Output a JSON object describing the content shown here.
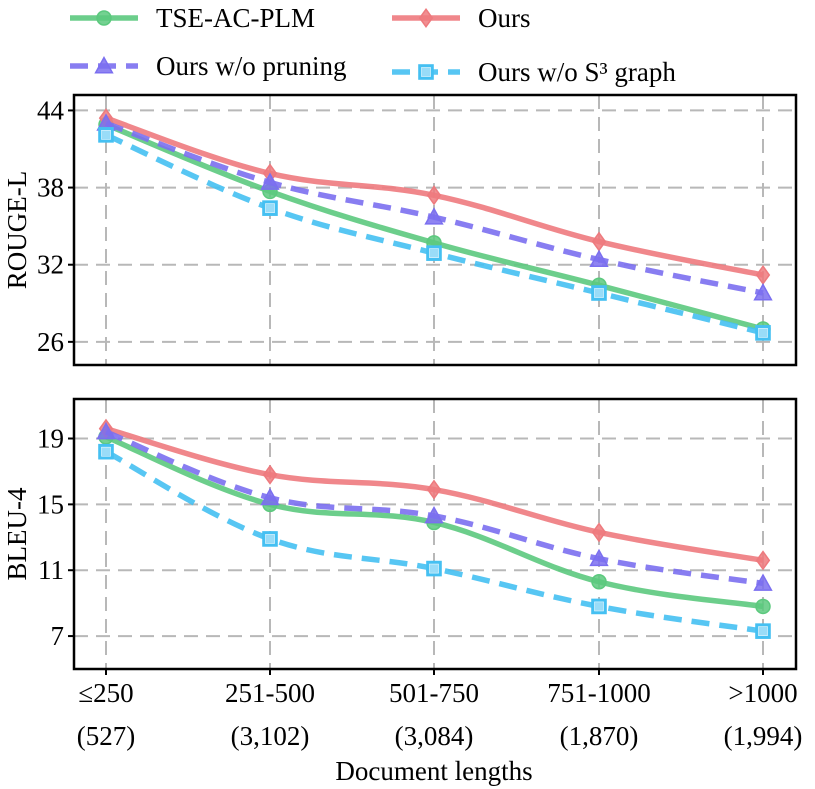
{
  "chart_data": [
    {
      "type": "line",
      "ylabel": "ROUGE-L",
      "yticks": [
        26,
        32,
        38,
        44
      ],
      "ylim": [
        24.2,
        45.2
      ],
      "grid": true,
      "series": [
        {
          "name": "TSE-AC-PLM",
          "values": [
            42.9,
            37.7,
            33.7,
            30.4,
            27.0
          ]
        },
        {
          "name": "Ours",
          "values": [
            43.4,
            39.1,
            37.4,
            33.8,
            31.2
          ]
        },
        {
          "name": "Ours w/o pruning",
          "values": [
            43.0,
            38.4,
            35.7,
            32.4,
            29.8
          ]
        },
        {
          "name": "Ours w/o S³ graph",
          "values": [
            42.1,
            36.4,
            32.9,
            29.8,
            26.7
          ]
        }
      ]
    },
    {
      "type": "line",
      "ylabel": "BLEU-4",
      "yticks": [
        7,
        11,
        15,
        19
      ],
      "ylim": [
        5.0,
        21.4
      ],
      "grid": true,
      "series": [
        {
          "name": "TSE-AC-PLM",
          "values": [
            19.1,
            15.0,
            13.9,
            10.3,
            8.8
          ]
        },
        {
          "name": "Ours",
          "values": [
            19.6,
            16.8,
            15.9,
            13.3,
            11.6
          ]
        },
        {
          "name": "Ours w/o pruning",
          "values": [
            19.4,
            15.4,
            14.3,
            11.7,
            10.2
          ]
        },
        {
          "name": "Ours w/o S³ graph",
          "values": [
            18.2,
            12.9,
            11.1,
            8.8,
            7.3
          ]
        }
      ]
    }
  ],
  "x_categories": [
    {
      "range": "≤250",
      "count": "(527)"
    },
    {
      "range": "251-500",
      "count": "(3,102)"
    },
    {
      "range": "501-750",
      "count": "(3,084)"
    },
    {
      "range": "751-1000",
      "count": "(1,870)"
    },
    {
      "range": ">1000",
      "count": "(1,994)"
    }
  ],
  "xlabel": "Document lengths",
  "legend": {
    "placement": "top",
    "items": [
      {
        "label": "TSE-AC-PLM",
        "color": "#5cc97e",
        "marker": "circle",
        "dash": "solid"
      },
      {
        "label": "Ours",
        "color": "#ee7a7e",
        "marker": "diamond",
        "dash": "solid"
      },
      {
        "label": "Ours w/o pruning",
        "color": "#7b6ff0",
        "marker": "triangle",
        "dash": "dashed"
      },
      {
        "label": "Ours w/o S³ graph",
        "color": "#45c0f2",
        "marker": "square",
        "dash": "dashed"
      }
    ]
  }
}
